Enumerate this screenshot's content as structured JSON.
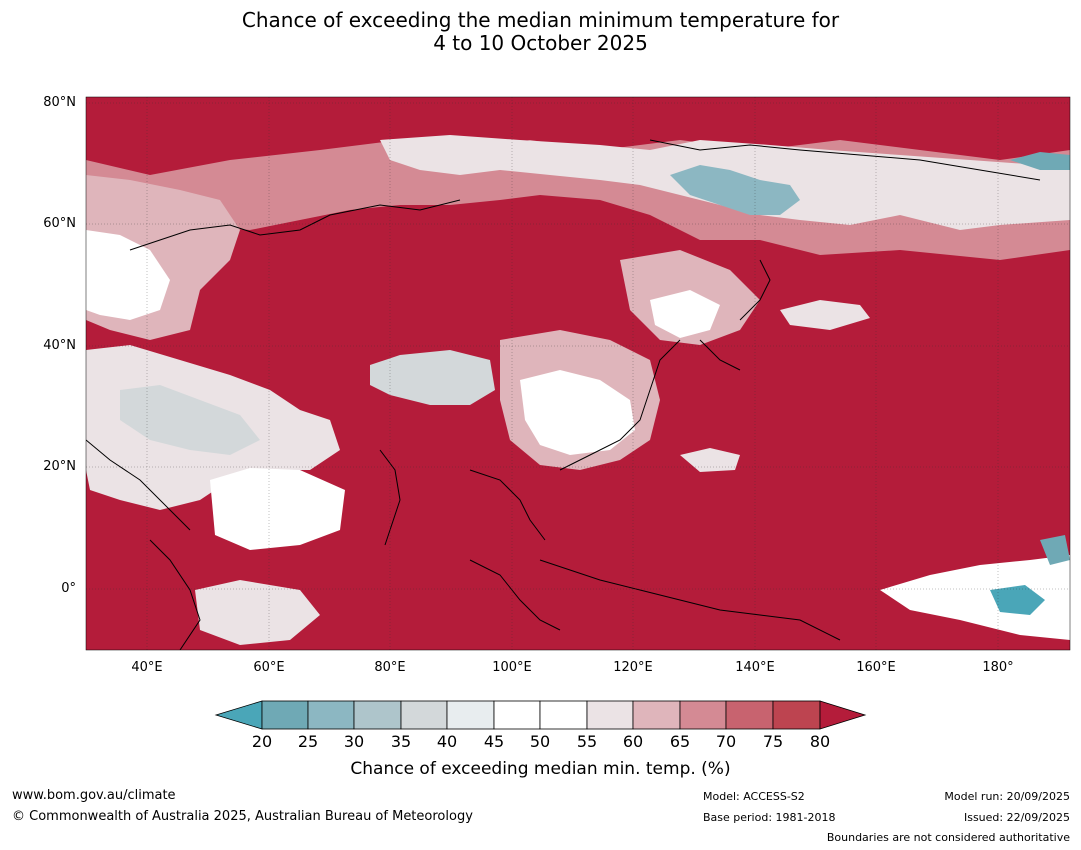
{
  "title": {
    "line1": "Chance of exceeding the median minimum temperature for",
    "line2": "4 to 10 October 2025"
  },
  "map": {
    "region": "Asia and surrounds",
    "lat_labels": [
      "80°N",
      "60°N",
      "40°N",
      "20°N",
      "0°"
    ],
    "lon_labels": [
      "40°E",
      "60°E",
      "80°E",
      "100°E",
      "120°E",
      "140°E",
      "160°E",
      "180°"
    ],
    "ocean_color": "#b41c3a",
    "lat_range": [
      -10,
      81
    ],
    "lon_range": [
      30,
      192
    ]
  },
  "colorbar": {
    "ticks": [
      "20",
      "25",
      "30",
      "35",
      "40",
      "45",
      "50",
      "55",
      "60",
      "65",
      "70",
      "75",
      "80"
    ],
    "colors": [
      "#4aa6b8",
      "#6fa9b5",
      "#8cb7c2",
      "#aec5cb",
      "#d3d8da",
      "#e8edef",
      "#ffffff",
      "#ffffff",
      "#ebe3e5",
      "#dfb5bb",
      "#d48a94",
      "#c8636f",
      "#bd4450",
      "#b41c3a"
    ],
    "label": "Chance of exceeding median min. temp. (%)"
  },
  "footer": {
    "website": "www.bom.gov.au/climate",
    "copyright": "© Commonwealth of Australia 2025, Australian Bureau of Meteorology",
    "model": "Model: ACCESS-S2",
    "base_period": "Base period: 1981-2018",
    "model_run": "Model run: 20/09/2025",
    "issued": "Issued: 22/09/2025",
    "disclaimer": "Boundaries are not considered authoritative"
  }
}
